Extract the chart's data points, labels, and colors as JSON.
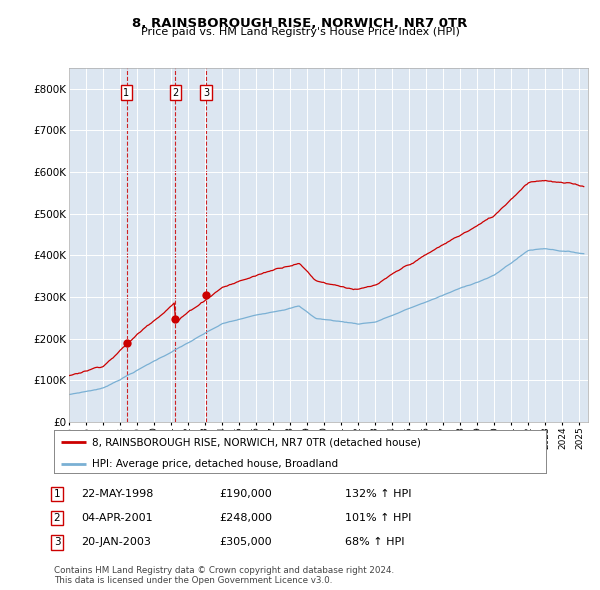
{
  "title": "8, RAINSBOROUGH RISE, NORWICH, NR7 0TR",
  "subtitle": "Price paid vs. HM Land Registry's House Price Index (HPI)",
  "plot_bg_color": "#dce6f1",
  "red_line_color": "#cc0000",
  "blue_line_color": "#7ab0d4",
  "sale_marker_color": "#cc0000",
  "dashed_line_color": "#cc0000",
  "ylabel_ticks": [
    "£0",
    "£100K",
    "£200K",
    "£300K",
    "£400K",
    "£500K",
    "£600K",
    "£700K",
    "£800K"
  ],
  "ytick_values": [
    0,
    100000,
    200000,
    300000,
    400000,
    500000,
    600000,
    700000,
    800000
  ],
  "sales": [
    {
      "label": "1",
      "date": "22-MAY-1998",
      "price": 190000,
      "year": 1998.38,
      "hpi_pct": "132%",
      "dir": "↑"
    },
    {
      "label": "2",
      "date": "04-APR-2001",
      "price": 248000,
      "year": 2001.25,
      "hpi_pct": "101%",
      "dir": "↑"
    },
    {
      "label": "3",
      "date": "20-JAN-2003",
      "price": 305000,
      "year": 2003.05,
      "hpi_pct": "68%",
      "dir": "↑"
    }
  ],
  "legend_line1": "8, RAINSBOROUGH RISE, NORWICH, NR7 0TR (detached house)",
  "legend_line2": "HPI: Average price, detached house, Broadland",
  "footer": "Contains HM Land Registry data © Crown copyright and database right 2024.\nThis data is licensed under the Open Government Licence v3.0.",
  "xmin": 1995,
  "xmax": 2025.5,
  "ymin": 0,
  "ymax": 850000
}
